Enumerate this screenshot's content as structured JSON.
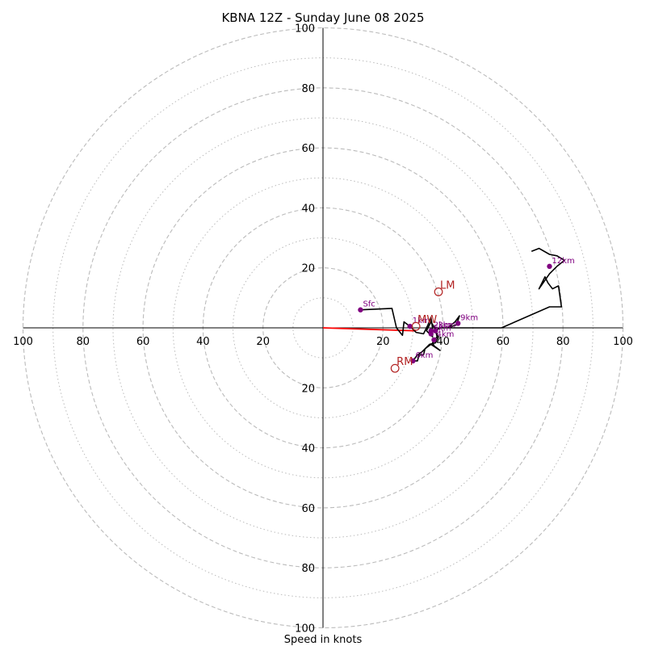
{
  "chart_data": {
    "type": "hodograph",
    "title": "KBNA 12Z - Sunday June 08 2025",
    "xlabel": "Speed in knots",
    "ring_max": 100,
    "rings_major": [
      20,
      40,
      60,
      80,
      100
    ],
    "rings_minor": [
      10,
      30,
      50,
      70,
      90
    ],
    "tick_labels": [
      "20",
      "40",
      "60",
      "80",
      "100"
    ],
    "colors": {
      "trace": "#000000",
      "height_markers": "#800080",
      "storm_motion": "#b22222",
      "shear_vector": "#ff0000",
      "grid": "#bbbbbb"
    },
    "trace": [
      [
        12.5,
        6
      ],
      [
        23,
        6.5
      ],
      [
        24.5,
        0
      ],
      [
        26.5,
        -2.5
      ],
      [
        27,
        2
      ],
      [
        29,
        0.5
      ],
      [
        31,
        -1.5
      ],
      [
        33.5,
        -2
      ],
      [
        35,
        1
      ],
      [
        36,
        3.5
      ],
      [
        36.5,
        0
      ],
      [
        36.5,
        -3
      ],
      [
        34.5,
        -1
      ],
      [
        36,
        2
      ],
      [
        37.5,
        -0.5
      ],
      [
        38,
        -3
      ],
      [
        36.5,
        -5
      ],
      [
        37,
        -6
      ],
      [
        39,
        -7.5
      ],
      [
        36,
        -5.5
      ],
      [
        34,
        -7
      ],
      [
        33.5,
        -9
      ],
      [
        32,
        -9
      ],
      [
        31.5,
        -11
      ],
      [
        30,
        -11
      ],
      [
        31.5,
        -9
      ],
      [
        33,
        -8
      ],
      [
        35.5,
        -5.5
      ],
      [
        37.5,
        -5
      ],
      [
        38.5,
        -3
      ],
      [
        37.5,
        -1
      ],
      [
        39,
        0
      ],
      [
        41.5,
        0
      ],
      [
        44.5,
        1
      ],
      [
        45.5,
        4
      ],
      [
        44,
        2
      ],
      [
        41.5,
        0
      ],
      [
        59.5,
        0
      ],
      [
        75.5,
        7
      ],
      [
        79.5,
        7
      ],
      [
        78.5,
        14
      ],
      [
        76.5,
        13
      ],
      [
        75,
        15
      ],
      [
        74,
        17
      ],
      [
        72,
        13
      ],
      [
        75.5,
        18
      ],
      [
        78,
        20.5
      ],
      [
        80.5,
        22.5
      ],
      [
        78,
        24
      ],
      [
        75.5,
        24.5
      ],
      [
        72,
        26.5
      ],
      [
        69.5,
        25.5
      ]
    ],
    "height_markers": [
      {
        "label": "Sfc",
        "u": 12.5,
        "v": 6
      },
      {
        "label": "1km",
        "u": 29,
        "v": 0.5
      },
      {
        "label": "2km",
        "u": 36,
        "v": -1
      },
      {
        "label": "3km",
        "u": 37.5,
        "v": -1
      },
      {
        "label": "4km",
        "u": 37,
        "v": -4
      },
      {
        "label": "5km",
        "u": 36,
        "v": -2
      },
      {
        "label": "6km",
        "u": 30,
        "v": -11
      },
      {
        "label": "9km",
        "u": 45,
        "v": 1.5
      },
      {
        "label": "12km",
        "u": 75.5,
        "v": 20.5
      }
    ],
    "storm_motion": [
      {
        "label": "LM",
        "u": 38.5,
        "v": 12
      },
      {
        "label": "MW",
        "u": 31,
        "v": 0.5
      },
      {
        "label": "RM",
        "u": 24,
        "v": -13.5
      }
    ],
    "shear_vector": {
      "from": [
        0,
        0
      ],
      "to": [
        31,
        -1
      ]
    }
  }
}
